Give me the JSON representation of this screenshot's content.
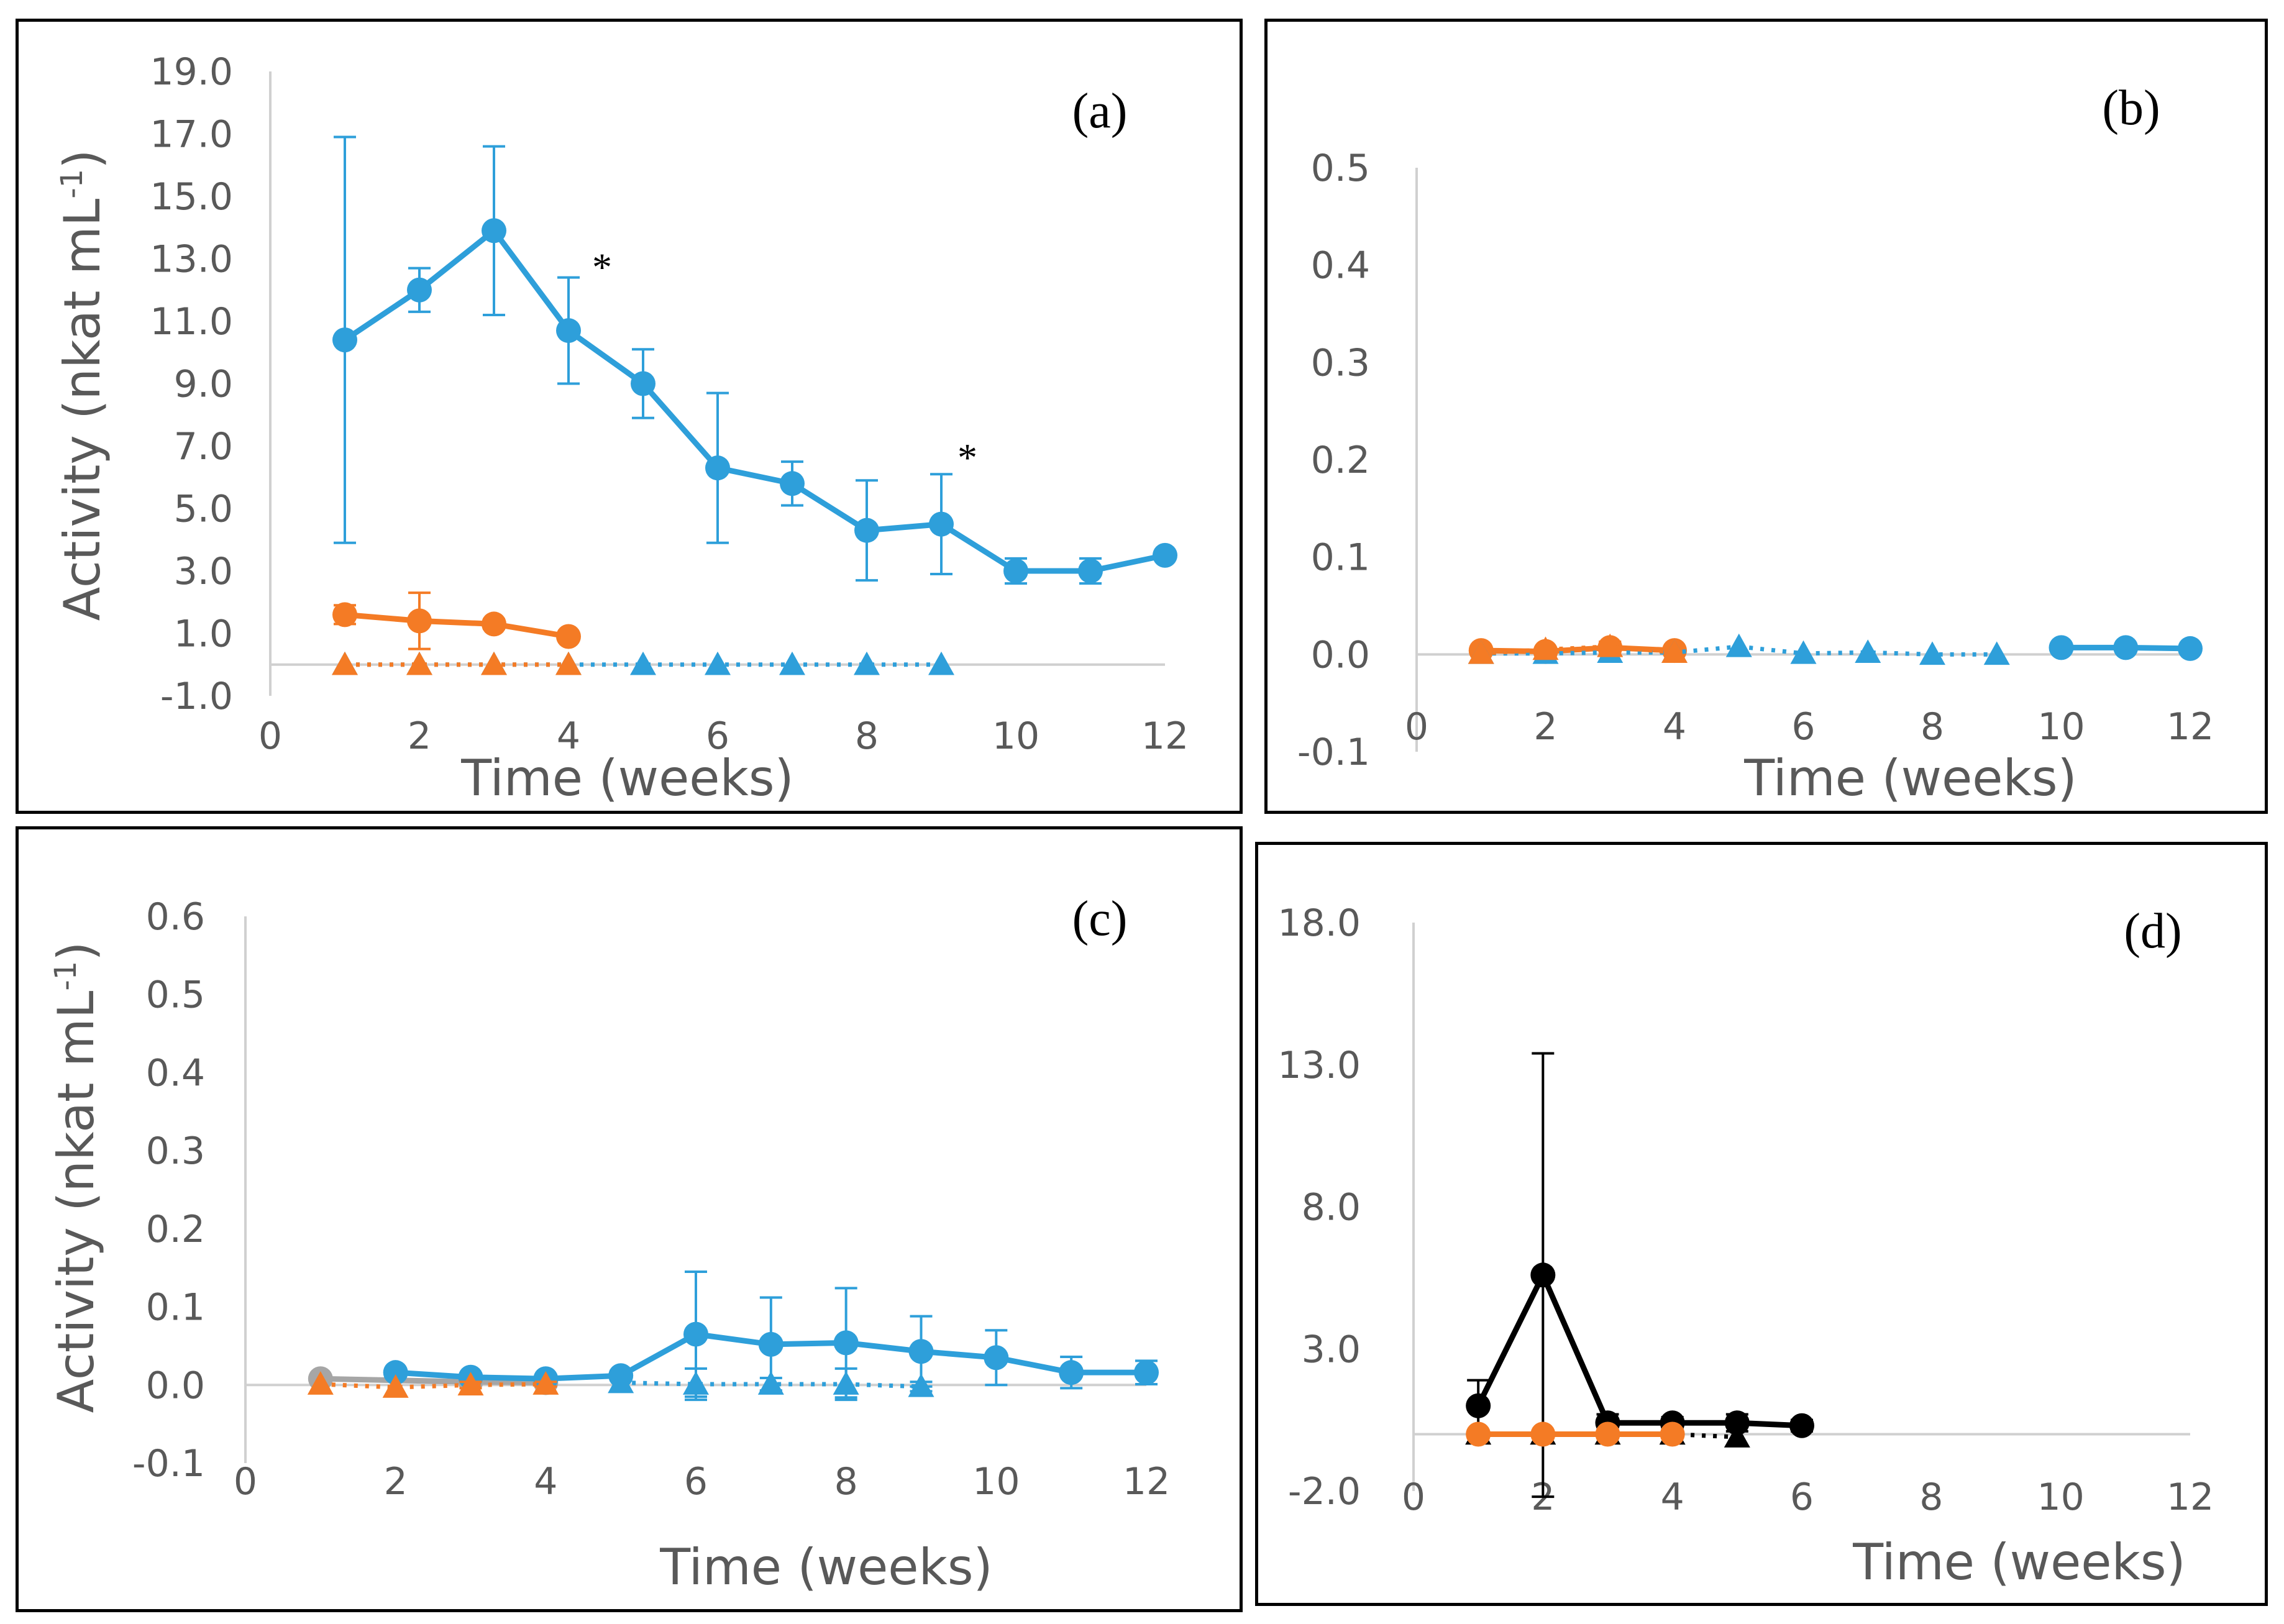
{
  "chart_data": [
    {
      "type": "line",
      "panel_label": "(a)",
      "xlabel": "Time (weeks)",
      "ylabel": "Activity (nkat mL",
      "ylabel_sup": "-1",
      "ylabel_end": ")",
      "xlim": [
        0,
        12
      ],
      "ylim": [
        -1,
        19
      ],
      "xticks": [
        "0",
        "2",
        "4",
        "6",
        "8",
        "10",
        "12"
      ],
      "yticks": [
        "-1.0",
        "1.0",
        "3.0",
        "5.0",
        "7.0",
        "9.0",
        "11.0",
        "13.0",
        "15.0",
        "17.0",
        "19.0"
      ],
      "annotations": [
        {
          "text": "*",
          "x": 4.45,
          "y": 12.9
        },
        {
          "text": "*",
          "x": 9.35,
          "y": 6.8
        }
      ],
      "series": [
        {
          "name": "blue-circle",
          "color": "#2e9fda",
          "marker": "circle",
          "dash": false,
          "x": [
            1,
            2,
            3,
            4,
            5,
            6,
            7,
            8,
            9,
            10,
            11,
            12
          ],
          "y": [
            10.4,
            12.0,
            13.9,
            10.7,
            9.0,
            6.3,
            5.8,
            4.3,
            4.5,
            3.0,
            3.0,
            3.5
          ],
          "err": [
            6.5,
            0.7,
            2.7,
            1.7,
            1.1,
            2.4,
            0.7,
            1.6,
            1.6,
            0.4,
            0.4,
            0.1
          ]
        },
        {
          "name": "orange-circle",
          "color": "#f47b25",
          "marker": "circle",
          "dash": false,
          "x": [
            1,
            2,
            3,
            4
          ],
          "y": [
            1.6,
            1.4,
            1.3,
            0.9
          ],
          "err": [
            0.3,
            0.9,
            0.15,
            0.1
          ]
        },
        {
          "name": "blue-triangle",
          "color": "#2e9fda",
          "marker": "triangle",
          "dash": true,
          "x": [
            1,
            2,
            3,
            4,
            5,
            6,
            7,
            8,
            9
          ],
          "y": [
            0,
            0,
            0,
            0,
            0,
            0,
            0,
            0,
            0
          ],
          "err": [
            0,
            0,
            0,
            0,
            0,
            0,
            0,
            0,
            0
          ]
        },
        {
          "name": "orange-triangle",
          "color": "#f47b25",
          "marker": "triangle",
          "dash": true,
          "x": [
            1,
            2,
            3,
            4
          ],
          "y": [
            0,
            0,
            0,
            0
          ],
          "err": [
            0,
            0,
            0,
            0
          ]
        }
      ]
    },
    {
      "type": "line",
      "panel_label": "(b)",
      "xlabel": "Time (weeks)",
      "xlim": [
        0,
        12
      ],
      "ylim": [
        -0.1,
        0.5
      ],
      "xticks": [
        "0",
        "2",
        "4",
        "6",
        "8",
        "10",
        "12"
      ],
      "yticks": [
        "-0.1",
        "0.0",
        "0.1",
        "0.2",
        "0.3",
        "0.4",
        "0.5"
      ],
      "series": [
        {
          "name": "blue-circle",
          "color": "#2e9fda",
          "marker": "circle",
          "dash": false,
          "x": [
            10,
            11,
            12
          ],
          "y": [
            0.007,
            0.007,
            0.006
          ],
          "err": [
            0,
            0,
            0
          ]
        },
        {
          "name": "orange-circle",
          "color": "#f47b25",
          "marker": "circle",
          "dash": false,
          "x": [
            1,
            2,
            3,
            4
          ],
          "y": [
            0.004,
            0.003,
            0.007,
            0.004
          ],
          "err": [
            0.002,
            0.002,
            0.006,
            0.002
          ]
        },
        {
          "name": "blue-triangle",
          "color": "#2e9fda",
          "marker": "triangle",
          "dash": true,
          "x": [
            1,
            2,
            3,
            4,
            5,
            6,
            7,
            8,
            9
          ],
          "y": [
            0.001,
            0.001,
            0.002,
            0.002,
            0.008,
            0.001,
            0.002,
            0.0,
            0.0
          ],
          "err": [
            0,
            0,
            0,
            0,
            0,
            0,
            0,
            0,
            0
          ]
        },
        {
          "name": "orange-triangle",
          "color": "#f47b25",
          "marker": "triangle",
          "dash": true,
          "x": [
            1,
            2,
            3,
            4
          ],
          "y": [
            0.001,
            0.005,
            0.008,
            0.002
          ],
          "err": [
            0,
            0,
            0,
            0
          ]
        }
      ]
    },
    {
      "type": "line",
      "panel_label": "(c)",
      "xlabel": "Time (weeks)",
      "ylabel": "Activity (nkat mL",
      "ylabel_sup": "-1",
      "ylabel_end": ")",
      "xlim": [
        0,
        12
      ],
      "ylim": [
        -0.1,
        0.6
      ],
      "xticks": [
        "0",
        "2",
        "4",
        "6",
        "8",
        "10",
        "12"
      ],
      "yticks": [
        "-0.1",
        "0.0",
        "0.1",
        "0.2",
        "0.3",
        "0.4",
        "0.5",
        "0.6"
      ],
      "series": [
        {
          "name": "gray-circle",
          "color": "#a6a6a6",
          "marker": "circle",
          "dash": false,
          "x": [
            1,
            3,
            4
          ],
          "y": [
            0.008,
            0.004,
            0.003
          ],
          "err": [
            0,
            0,
            0
          ]
        },
        {
          "name": "blue-circle",
          "color": "#2e9fda",
          "marker": "circle",
          "dash": false,
          "x": [
            2,
            3,
            4,
            5,
            6,
            7,
            8,
            9,
            10,
            11,
            12
          ],
          "y": [
            0.016,
            0.01,
            0.008,
            0.012,
            0.065,
            0.052,
            0.054,
            0.043,
            0.035,
            0.016,
            0.016
          ],
          "err": [
            0.004,
            0.004,
            0.004,
            0.006,
            0.08,
            0.06,
            0.07,
            0.045,
            0.035,
            0.02,
            0.015
          ]
        },
        {
          "name": "blue-triangle",
          "color": "#2e9fda",
          "marker": "triangle",
          "dash": true,
          "x": [
            5,
            6,
            7,
            8,
            9
          ],
          "y": [
            0.003,
            0.001,
            0.001,
            0.001,
            -0.002
          ],
          "err": [
            0,
            0.02,
            0.008,
            0.02,
            0.006
          ]
        },
        {
          "name": "orange-triangle",
          "color": "#f47b25",
          "marker": "triangle",
          "dash": true,
          "x": [
            1,
            2,
            3,
            4
          ],
          "y": [
            0.001,
            -0.003,
            0.0,
            0.001
          ],
          "err": [
            0,
            0,
            0.004,
            0.003
          ]
        }
      ]
    },
    {
      "type": "line",
      "panel_label": "(d)",
      "xlabel": "Time (weeks)",
      "xlim": [
        0,
        12
      ],
      "ylim": [
        -2,
        18
      ],
      "xticks": [
        "0",
        "2",
        "4",
        "6",
        "8",
        "10",
        "12"
      ],
      "yticks": [
        "-2.0",
        "3.0",
        "8.0",
        "13.0",
        "18.0"
      ],
      "series": [
        {
          "name": "black-circle",
          "color": "#000000",
          "marker": "circle",
          "dash": false,
          "x": [
            1,
            2,
            3,
            4,
            5,
            6
          ],
          "y": [
            1.0,
            5.6,
            0.4,
            0.4,
            0.4,
            0.3
          ],
          "err": [
            0.9,
            7.8,
            0.3,
            0.2,
            0.3,
            0.2
          ]
        },
        {
          "name": "black-triangle",
          "color": "#000000",
          "marker": "triangle",
          "dash": true,
          "x": [
            1,
            2,
            3,
            4,
            5
          ],
          "y": [
            0.0,
            0.0,
            0.0,
            0.0,
            -0.1
          ],
          "err": [
            0,
            0,
            0,
            0,
            0
          ]
        },
        {
          "name": "orange-circle",
          "color": "#f47b25",
          "marker": "circle",
          "dash": false,
          "x": [
            1,
            2,
            3,
            4
          ],
          "y": [
            0.0,
            0.0,
            0.0,
            0.0
          ],
          "err": [
            0,
            0,
            0,
            0
          ]
        }
      ]
    }
  ]
}
